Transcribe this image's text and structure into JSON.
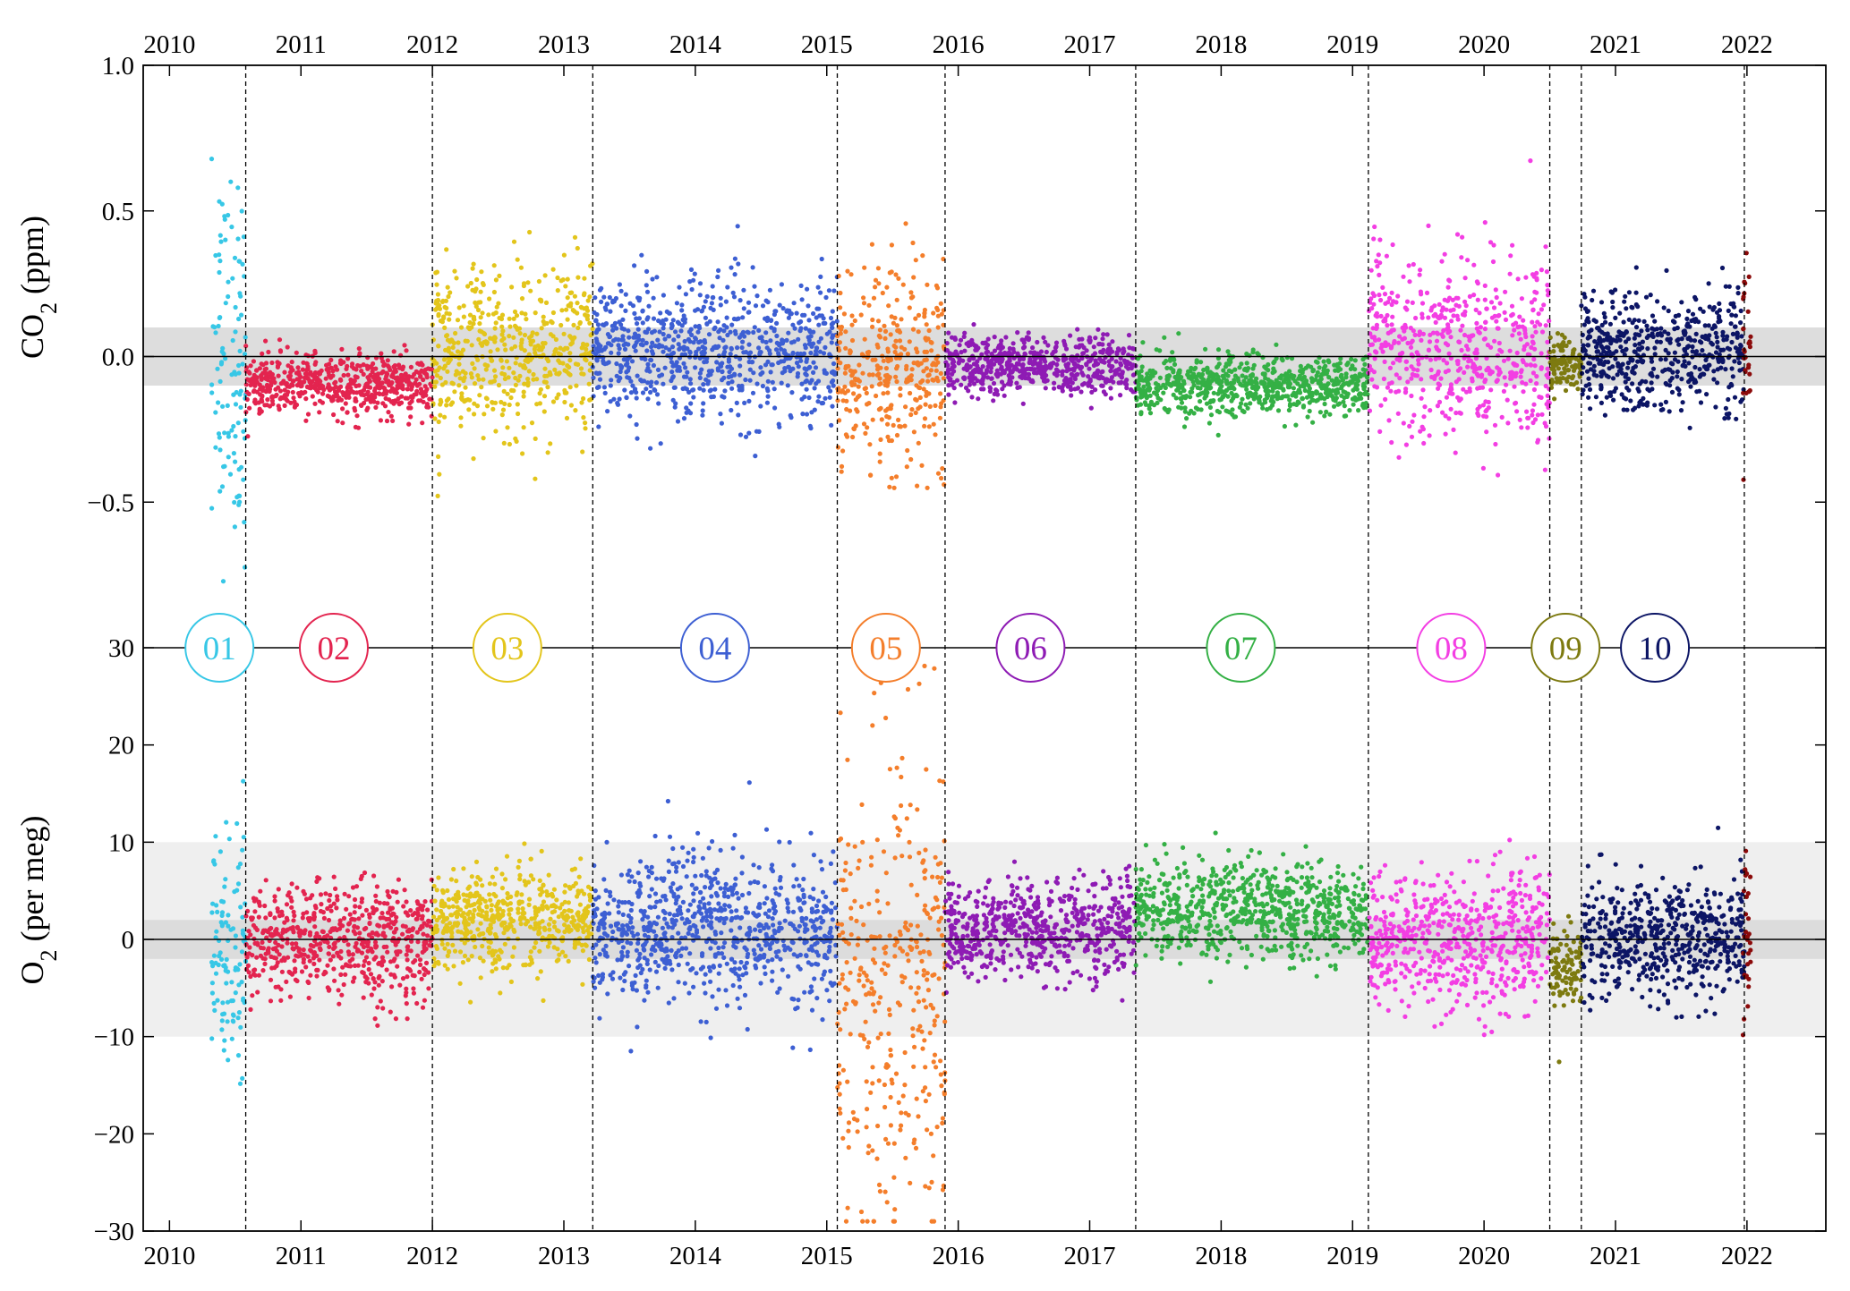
{
  "chart_data": {
    "type": "scatter",
    "description_free": true,
    "x_axis": {
      "label": "",
      "range": [
        2009.8,
        2022.6
      ],
      "ticks": [
        "2010",
        "2011",
        "2012",
        "2013",
        "2014",
        "2015",
        "2016",
        "2017",
        "2018",
        "2019",
        "2020",
        "2021",
        "2022"
      ],
      "tick_values": [
        2010,
        2011,
        2012,
        2013,
        2014,
        2015,
        2016,
        2017,
        2018,
        2019,
        2020,
        2021,
        2022
      ]
    },
    "panels": [
      {
        "id": "co2",
        "ylabel_main": "CO",
        "ylabel_sub": "2",
        "ylabel_rest": " (ppm)",
        "ylim": [
          -1.0,
          1.0
        ],
        "yticks": [
          1.0,
          0.5,
          0.0,
          -0.5
        ],
        "ytick_labels": [
          "1.0",
          "0.5",
          "0.0",
          "−0.5"
        ],
        "bands": [
          {
            "from": -0.1,
            "to": 0.1,
            "color": "#dddddd"
          }
        ],
        "zero_line": 0.0
      },
      {
        "id": "o2",
        "ylabel_main": "O",
        "ylabel_sub": "2",
        "ylabel_rest": " (per meg)",
        "ylim": [
          -30,
          30
        ],
        "yticks": [
          30,
          20,
          10,
          0,
          -10,
          -20,
          -30
        ],
        "ytick_labels": [
          "30",
          "20",
          "10",
          "0",
          "−10",
          "−20",
          "−30"
        ],
        "bands": [
          {
            "from": -10,
            "to": 10,
            "color": "#efefef"
          },
          {
            "from": -2,
            "to": 2,
            "color": "#dcdcdc"
          }
        ],
        "zero_line": 0
      }
    ],
    "boundaries": [
      2010.58,
      2012.0,
      2013.22,
      2015.08,
      2015.9,
      2017.35,
      2019.12,
      2020.5,
      2020.74,
      2021.98
    ],
    "periods": [
      {
        "id": "01",
        "label": "01",
        "color": "#37c7e6",
        "start": 2010.32,
        "end": 2010.58,
        "label_x": 2010.38,
        "co2": {
          "mean": 0.0,
          "sd": 0.32,
          "outlier": 0.0
        },
        "o2": {
          "mean": -1.0,
          "sd": 6.0
        }
      },
      {
        "id": "02",
        "label": "02",
        "color": "#e3244f",
        "start": 2010.58,
        "end": 2012.0,
        "label_x": 2011.25,
        "co2": {
          "mean": -0.1,
          "sd": 0.05
        },
        "o2": {
          "mean": -0.3,
          "sd": 3.0
        }
      },
      {
        "id": "03",
        "label": "03",
        "color": "#e3c51b",
        "start": 2012.0,
        "end": 2013.22,
        "label_x": 2012.57,
        "co2": {
          "mean": 0.02,
          "sd": 0.15
        },
        "o2": {
          "mean": 2.0,
          "sd": 2.5
        }
      },
      {
        "id": "04",
        "label": "04",
        "color": "#3d5fd3",
        "start": 2013.22,
        "end": 2015.08,
        "label_x": 2014.15,
        "co2": {
          "mean": 0.02,
          "sd": 0.12
        },
        "o2": {
          "mean": 1.0,
          "sd": 4.0
        }
      },
      {
        "id": "05",
        "label": "05",
        "color": "#f47e2b",
        "start": 2015.08,
        "end": 2015.9,
        "label_x": 2015.45,
        "co2": {
          "mean": -0.05,
          "sd": 0.17
        },
        "o2": {
          "mean": -5.0,
          "sd": 12.0
        }
      },
      {
        "id": "06",
        "label": "06",
        "color": "#8e1bb4",
        "start": 2015.9,
        "end": 2017.35,
        "label_x": 2016.55,
        "co2": {
          "mean": -0.03,
          "sd": 0.05
        },
        "o2": {
          "mean": 1.0,
          "sd": 2.5
        }
      },
      {
        "id": "07",
        "label": "07",
        "color": "#34b045",
        "start": 2017.35,
        "end": 2019.12,
        "label_x": 2018.15,
        "co2": {
          "mean": -0.1,
          "sd": 0.05
        },
        "o2": {
          "mean": 3.0,
          "sd": 2.5
        }
      },
      {
        "id": "08",
        "label": "08",
        "color": "#f33ee3",
        "start": 2019.12,
        "end": 2020.5,
        "label_x": 2019.75,
        "co2": {
          "mean": 0.03,
          "sd": 0.15
        },
        "o2": {
          "mean": 0.0,
          "sd": 3.5
        }
      },
      {
        "id": "09",
        "label": "09",
        "color": "#7d7a10",
        "start": 2020.5,
        "end": 2020.74,
        "label_x": 2020.62,
        "co2": {
          "mean": -0.02,
          "sd": 0.05
        },
        "o2": {
          "mean": -3.0,
          "sd": 2.0
        }
      },
      {
        "id": "10",
        "label": "10",
        "color": "#0c1565",
        "start": 2020.74,
        "end": 2021.98,
        "label_x": 2021.3,
        "co2": {
          "mean": 0.02,
          "sd": 0.1
        },
        "o2": {
          "mean": 0.0,
          "sd": 3.0
        }
      },
      {
        "id": "11",
        "label": "",
        "color": "#8b0a0a",
        "start": 2021.97,
        "end": 2022.03,
        "label_x": 2022.0,
        "co2": {
          "mean": 0.0,
          "sd": 0.2
        },
        "o2": {
          "mean": 0.0,
          "sd": 5.0
        }
      }
    ]
  }
}
